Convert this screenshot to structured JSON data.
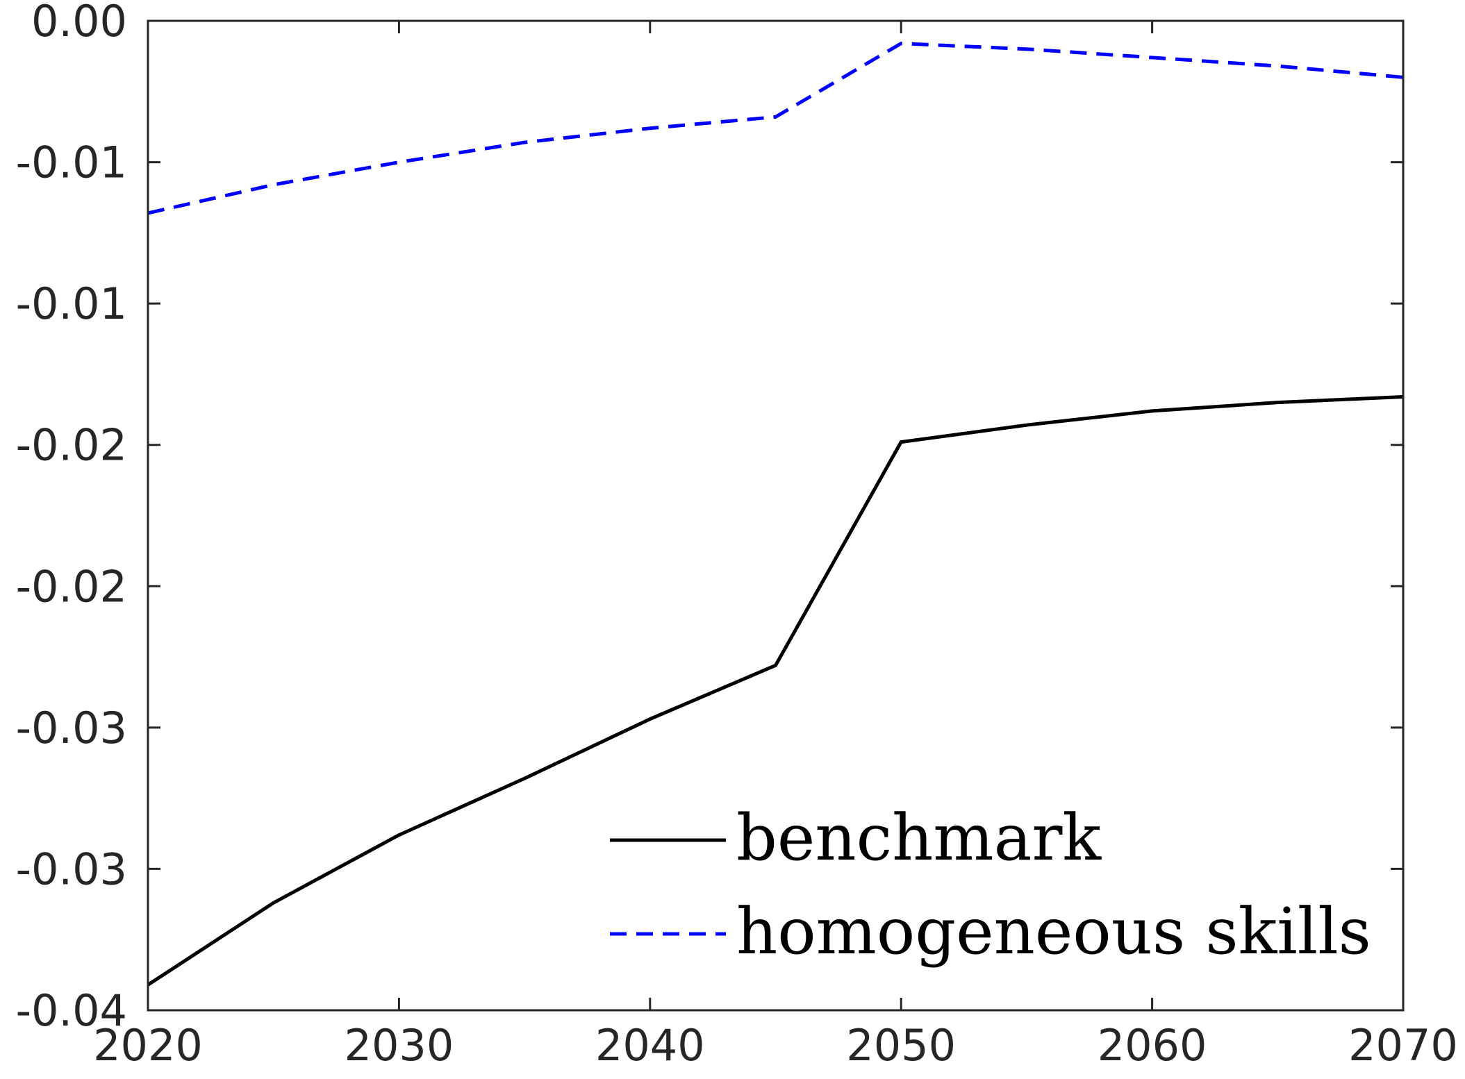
{
  "chart_data": {
    "type": "line",
    "title": "",
    "xlabel": "",
    "ylabel": "",
    "xlim": [
      2020,
      2070
    ],
    "ylim": [
      -0.035,
      0.0
    ],
    "grid": false,
    "legend_position": "bottom-right",
    "x": [
      2020,
      2025,
      2030,
      2035,
      2040,
      2045,
      2050,
      2055,
      2060,
      2065,
      2070
    ],
    "x_ticks": [
      {
        "value": 2020,
        "label": "2020"
      },
      {
        "value": 2030,
        "label": "2030"
      },
      {
        "value": 2040,
        "label": "2040"
      },
      {
        "value": 2050,
        "label": "2050"
      },
      {
        "value": 2060,
        "label": "2060"
      },
      {
        "value": 2070,
        "label": "2070"
      }
    ],
    "y_ticks": [
      {
        "value": 0.0,
        "label": "0.00"
      },
      {
        "value": -0.005,
        "label": "-0.01"
      },
      {
        "value": -0.01,
        "label": "-0.01"
      },
      {
        "value": -0.015,
        "label": "-0.02"
      },
      {
        "value": -0.02,
        "label": "-0.02"
      },
      {
        "value": -0.025,
        "label": "-0.03"
      },
      {
        "value": -0.03,
        "label": "-0.03"
      },
      {
        "value": -0.035,
        "label": "-0.04"
      }
    ],
    "series": [
      {
        "name": "benchmark",
        "color": "#000000",
        "dash": "solid",
        "values": [
          -0.0341,
          -0.0312,
          -0.0288,
          -0.0268,
          -0.0247,
          -0.0228,
          -0.0149,
          -0.0143,
          -0.0138,
          -0.0135,
          -0.0133
        ]
      },
      {
        "name": "homogeneous skills",
        "color": "#0000ff",
        "dash": "dashed",
        "values": [
          -0.0068,
          -0.0058,
          -0.005,
          -0.0043,
          -0.0038,
          -0.0034,
          -0.0008,
          -0.001,
          -0.0013,
          -0.0016,
          -0.002
        ]
      }
    ]
  }
}
